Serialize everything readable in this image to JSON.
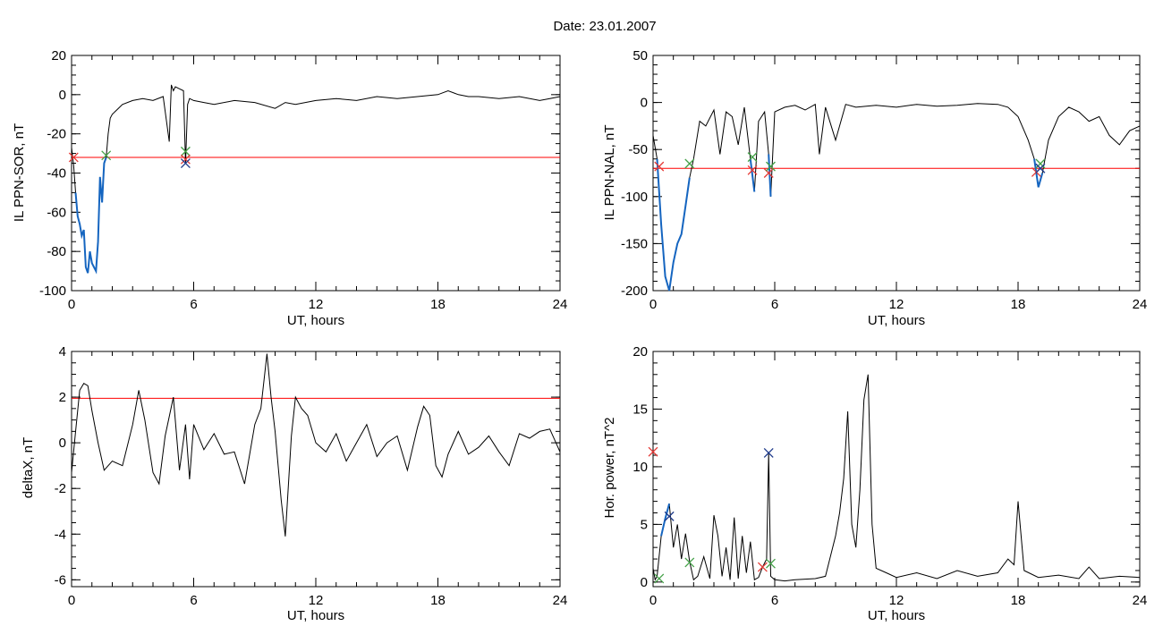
{
  "figure": {
    "title": "Date:  23.01.2007"
  },
  "colors": {
    "trace": "#000000",
    "threshold": "#ff0000",
    "highlight": "#1565c0",
    "marker_red": "#e53935",
    "marker_green": "#43a047",
    "marker_blue": "#1e3a8a"
  },
  "chart_data": [
    {
      "id": "p1",
      "type": "line",
      "xlabel": "UT, hours",
      "ylabel": "IL PPN-SOR, nT",
      "xlim": [
        0,
        24
      ],
      "ylim": [
        -100,
        20
      ],
      "xticks": [
        0,
        6,
        12,
        18,
        24
      ],
      "yticks": [
        -100,
        -80,
        -60,
        -40,
        -20,
        0,
        20
      ],
      "x_minor": 1,
      "y_minor": 5,
      "threshold": -32,
      "x": [
        0,
        0.1,
        0.2,
        0.3,
        0.4,
        0.5,
        0.6,
        0.7,
        0.8,
        0.9,
        1.0,
        1.1,
        1.2,
        1.3,
        1.4,
        1.5,
        1.6,
        1.7,
        1.8,
        1.9,
        2.0,
        2.2,
        2.5,
        3.0,
        3.5,
        4.0,
        4.5,
        4.8,
        4.9,
        5.0,
        5.1,
        5.3,
        5.5,
        5.6,
        5.7,
        5.8,
        6.0,
        6.5,
        7,
        8,
        9,
        10,
        10.5,
        11,
        12,
        13,
        14,
        15,
        16,
        17,
        18,
        18.5,
        19,
        19.5,
        20,
        21,
        22,
        23,
        23.5,
        24
      ],
      "y": [
        -27,
        -36,
        -50,
        -62,
        -66,
        -72,
        -69,
        -88,
        -91,
        -80,
        -86,
        -88,
        -90,
        -75,
        -42,
        -55,
        -35,
        -32,
        -20,
        -12,
        -10,
        -8,
        -5,
        -3,
        -2,
        -3,
        -1,
        -24,
        5,
        2,
        4,
        3,
        2,
        -35,
        -5,
        -2,
        -3,
        -4,
        -5,
        -3,
        -4,
        -7,
        -4,
        -5,
        -3,
        -2,
        -3,
        -1,
        -2,
        -1,
        0,
        2,
        0,
        -1,
        -1,
        -2,
        -1,
        -3,
        -2,
        -1
      ],
      "segments": [
        [
          0.2,
          1.7
        ]
      ],
      "markers": [
        {
          "x": 0.1,
          "y": -32,
          "color": "red"
        },
        {
          "x": 1.7,
          "y": -31,
          "color": "green"
        },
        {
          "x": 5.6,
          "y": -29,
          "color": "green"
        },
        {
          "x": 5.6,
          "y": -33,
          "color": "red"
        },
        {
          "x": 5.6,
          "y": -35,
          "color": "blue"
        }
      ]
    },
    {
      "id": "p2",
      "type": "line",
      "xlabel": "UT, hours",
      "ylabel": "IL PPN-NAL, nT",
      "xlim": [
        0,
        24
      ],
      "ylim": [
        -200,
        50
      ],
      "xticks": [
        0,
        6,
        12,
        18,
        24
      ],
      "yticks": [
        -200,
        -150,
        -100,
        -50,
        0,
        50
      ],
      "x_minor": 1,
      "y_minor": 10,
      "threshold": -70,
      "x": [
        0,
        0.2,
        0.4,
        0.6,
        0.8,
        1.0,
        1.2,
        1.4,
        1.6,
        1.8,
        2.0,
        2.3,
        2.6,
        3.0,
        3.3,
        3.6,
        3.9,
        4.2,
        4.5,
        4.8,
        5.0,
        5.2,
        5.5,
        5.7,
        5.8,
        6.0,
        6.5,
        7.0,
        7.5,
        8.0,
        8.2,
        8.5,
        9.0,
        9.5,
        10,
        11,
        12,
        13,
        14,
        15,
        16,
        17,
        17.5,
        18,
        18.5,
        18.8,
        19.0,
        19.2,
        19.5,
        20,
        20.5,
        21,
        21.5,
        22,
        22.5,
        23,
        23.5,
        24
      ],
      "y": [
        -35,
        -60,
        -130,
        -185,
        -200,
        -170,
        -150,
        -140,
        -110,
        -80,
        -60,
        -20,
        -25,
        -8,
        -55,
        -10,
        -15,
        -45,
        -5,
        -60,
        -95,
        -20,
        -10,
        -55,
        -100,
        -10,
        -5,
        -3,
        -8,
        -2,
        -55,
        -5,
        -40,
        -2,
        -5,
        -3,
        -5,
        -2,
        -4,
        -3,
        -1,
        -2,
        -5,
        -15,
        -40,
        -60,
        -90,
        -75,
        -40,
        -15,
        -5,
        -10,
        -20,
        -15,
        -35,
        -45,
        -30,
        -25
      ],
      "segments": [
        [
          0.2,
          1.8
        ],
        [
          4.8,
          5.0
        ],
        [
          5.6,
          5.9
        ],
        [
          18.8,
          19.2
        ]
      ],
      "markers": [
        {
          "x": 0.3,
          "y": -68,
          "color": "red"
        },
        {
          "x": 1.8,
          "y": -65,
          "color": "green"
        },
        {
          "x": 4.9,
          "y": -72,
          "color": "red"
        },
        {
          "x": 4.9,
          "y": -58,
          "color": "green"
        },
        {
          "x": 5.7,
          "y": -75,
          "color": "red"
        },
        {
          "x": 5.8,
          "y": -68,
          "color": "green"
        },
        {
          "x": 18.9,
          "y": -74,
          "color": "red"
        },
        {
          "x": 19.1,
          "y": -65,
          "color": "green"
        },
        {
          "x": 19.1,
          "y": -70,
          "color": "blue"
        }
      ]
    },
    {
      "id": "p3",
      "type": "line",
      "xlabel": "UT, hours",
      "ylabel": "deltaX, nT",
      "xlim": [
        0,
        24
      ],
      "ylim": [
        -6.3,
        4
      ],
      "xticks": [
        0,
        6,
        12,
        18,
        24
      ],
      "yticks": [
        -6,
        -4,
        -2,
        0,
        2,
        4
      ],
      "x_minor": 1,
      "y_minor": 0.5,
      "threshold": 1.95,
      "x": [
        0,
        0.2,
        0.4,
        0.6,
        0.8,
        1.0,
        1.3,
        1.6,
        2.0,
        2.5,
        3.0,
        3.3,
        3.6,
        4.0,
        4.3,
        4.6,
        5.0,
        5.3,
        5.6,
        5.8,
        6.0,
        6.5,
        7.0,
        7.5,
        8.0,
        8.5,
        9.0,
        9.3,
        9.6,
        9.8,
        10.0,
        10.3,
        10.5,
        10.8,
        11.0,
        11.3,
        11.6,
        12.0,
        12.5,
        13.0,
        13.5,
        14.0,
        14.5,
        15.0,
        15.5,
        16.0,
        16.5,
        17.0,
        17.3,
        17.6,
        17.9,
        18.2,
        18.5,
        19.0,
        19.5,
        20.0,
        20.5,
        21.0,
        21.5,
        22.0,
        22.5,
        23.0,
        23.5,
        24
      ],
      "y": [
        -1.3,
        0.5,
        2.3,
        2.6,
        2.5,
        1.4,
        0,
        -1.2,
        -0.8,
        -1.0,
        0.8,
        2.3,
        1.0,
        -1.3,
        -1.8,
        0.3,
        2.0,
        -1.2,
        0.8,
        -1.6,
        0.8,
        -0.3,
        0.4,
        -0.5,
        -0.4,
        -1.8,
        0.8,
        1.5,
        3.9,
        2.0,
        0.5,
        -2.5,
        -4.1,
        0.3,
        2.0,
        1.5,
        1.2,
        0.0,
        -0.4,
        0.4,
        -0.8,
        0.0,
        0.8,
        -0.6,
        0.0,
        0.3,
        -1.2,
        0.7,
        1.6,
        1.2,
        -1.0,
        -1.5,
        -0.5,
        0.5,
        -0.5,
        -0.2,
        0.3,
        -0.4,
        -1.0,
        0.4,
        0.2,
        0.5,
        0.6,
        -0.4
      ],
      "segments": [],
      "markers": []
    },
    {
      "id": "p4",
      "type": "line",
      "xlabel": "UT, hours",
      "ylabel": "Hor. power, nT^2",
      "xlim": [
        0,
        24
      ],
      "ylim": [
        -0.4,
        20
      ],
      "xticks": [
        0,
        6,
        12,
        18,
        24
      ],
      "yticks": [
        0,
        5,
        10,
        15,
        20
      ],
      "x_minor": 1,
      "y_minor": 1,
      "threshold": null,
      "x": [
        0,
        0.1,
        0.2,
        0.4,
        0.6,
        0.8,
        1.0,
        1.2,
        1.4,
        1.6,
        1.8,
        2.0,
        2.2,
        2.5,
        2.8,
        3.0,
        3.2,
        3.4,
        3.6,
        3.8,
        4.0,
        4.2,
        4.4,
        4.6,
        4.8,
        5.0,
        5.2,
        5.4,
        5.6,
        5.7,
        5.8,
        6.0,
        6.5,
        7,
        8,
        8.5,
        9.0,
        9.2,
        9.4,
        9.6,
        9.8,
        10.0,
        10.2,
        10.4,
        10.6,
        10.8,
        11.0,
        11.5,
        12,
        13,
        14,
        15,
        16,
        17,
        17.5,
        17.8,
        18.0,
        18.3,
        19,
        20,
        21,
        21.5,
        22,
        23,
        24
      ],
      "y": [
        1.2,
        0.2,
        0.5,
        4.0,
        5.5,
        6.8,
        3.0,
        5.0,
        2.0,
        4.2,
        1.8,
        0.2,
        0.5,
        2.2,
        0.3,
        5.8,
        4.0,
        0.5,
        3.0,
        0.2,
        5.6,
        0.3,
        4.0,
        0.8,
        3.5,
        0.2,
        0.4,
        1.3,
        2.0,
        11.2,
        0.5,
        0.2,
        0.1,
        0.2,
        0.3,
        0.5,
        4.0,
        6.0,
        9.0,
        14.8,
        5.0,
        3.0,
        8.0,
        15.8,
        18.0,
        5.0,
        1.2,
        0.8,
        0.4,
        0.8,
        0.3,
        1.0,
        0.5,
        0.8,
        2.0,
        1.5,
        7.0,
        1.0,
        0.4,
        0.6,
        0.3,
        1.3,
        0.3,
        0.5,
        0.4
      ],
      "segments": [
        [
          0.4,
          0.8
        ]
      ],
      "markers": [
        {
          "x": 0,
          "y": 11.3,
          "color": "red"
        },
        {
          "x": 0.3,
          "y": 0.3,
          "color": "green"
        },
        {
          "x": 0.8,
          "y": 5.7,
          "color": "blue"
        },
        {
          "x": 1.8,
          "y": 1.7,
          "color": "green"
        },
        {
          "x": 5.4,
          "y": 1.3,
          "color": "red"
        },
        {
          "x": 5.7,
          "y": 11.2,
          "color": "blue"
        },
        {
          "x": 5.8,
          "y": 1.6,
          "color": "green"
        }
      ]
    }
  ]
}
